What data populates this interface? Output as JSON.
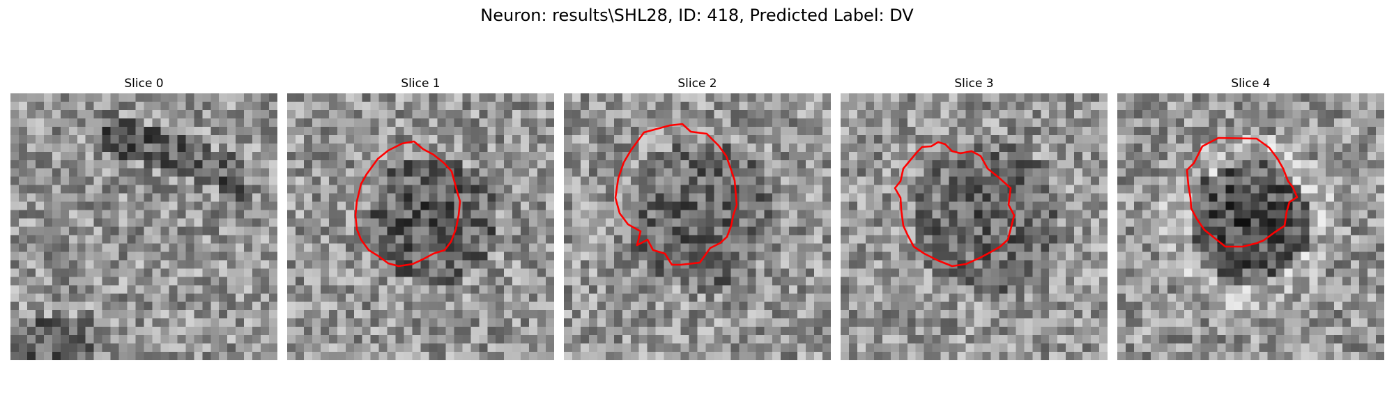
{
  "title": "Neuron: results\\SHL28, ID: 418, Predicted Label: DV",
  "contour_color": "#ff0000",
  "slices": [
    {
      "label": "Slice 0",
      "has_contour": false
    },
    {
      "label": "Slice 1",
      "has_contour": true
    },
    {
      "label": "Slice 2",
      "has_contour": true
    },
    {
      "label": "Slice 3",
      "has_contour": true
    },
    {
      "label": "Slice 4",
      "has_contour": true
    }
  ]
}
